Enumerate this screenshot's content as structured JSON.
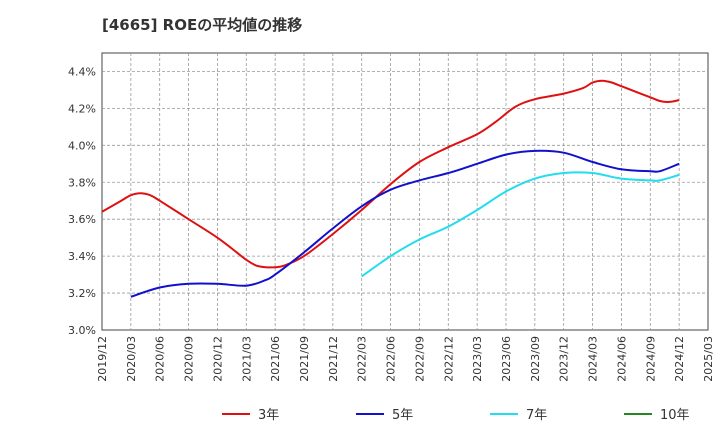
{
  "chart_data": {
    "type": "line",
    "title": "[4665]  ROEの平均値の推移",
    "xlabel": "",
    "ylabel": "",
    "ylim": [
      3.0,
      4.5
    ],
    "yticks": [
      3.0,
      3.2,
      3.4,
      3.6,
      3.8,
      4.0,
      4.2,
      4.4
    ],
    "ytick_labels": [
      "3.0%",
      "3.2%",
      "3.4%",
      "3.6%",
      "3.8%",
      "4.0%",
      "4.2%",
      "4.4%"
    ],
    "x_categories": [
      "2019/12",
      "2020/03",
      "2020/06",
      "2020/09",
      "2020/12",
      "2021/03",
      "2021/06",
      "2021/09",
      "2021/12",
      "2022/03",
      "2022/06",
      "2022/09",
      "2022/12",
      "2023/03",
      "2023/06",
      "2023/09",
      "2023/12",
      "2024/03",
      "2024/06",
      "2024/09",
      "2024/12",
      "2025/03"
    ],
    "grid": true,
    "legend_position": "bottom",
    "series": [
      {
        "name": "3年",
        "color": "#dd1111",
        "points": [
          [
            "2019/12",
            3.64
          ],
          [
            "2020/02",
            3.7
          ],
          [
            "2020/03",
            3.73
          ],
          [
            "2020/04",
            3.74
          ],
          [
            "2020/05",
            3.73
          ],
          [
            "2020/06",
            3.7
          ],
          [
            "2020/09",
            3.6
          ],
          [
            "2020/12",
            3.5
          ],
          [
            "2021/02",
            3.42
          ],
          [
            "2021/03",
            3.38
          ],
          [
            "2021/04",
            3.35
          ],
          [
            "2021/05",
            3.34
          ],
          [
            "2021/06",
            3.34
          ],
          [
            "2021/07",
            3.35
          ],
          [
            "2021/09",
            3.4
          ],
          [
            "2021/12",
            3.52
          ],
          [
            "2022/03",
            3.65
          ],
          [
            "2022/06",
            3.79
          ],
          [
            "2022/09",
            3.91
          ],
          [
            "2022/12",
            3.99
          ],
          [
            "2023/03",
            4.06
          ],
          [
            "2023/05",
            4.13
          ],
          [
            "2023/07",
            4.21
          ],
          [
            "2023/09",
            4.25
          ],
          [
            "2023/12",
            4.28
          ],
          [
            "2024/02",
            4.31
          ],
          [
            "2024/03",
            4.34
          ],
          [
            "2024/04",
            4.35
          ],
          [
            "2024/05",
            4.34
          ],
          [
            "2024/06",
            4.32
          ],
          [
            "2024/09",
            4.26
          ],
          [
            "2024/10",
            4.24
          ],
          [
            "2024/11",
            4.235
          ],
          [
            "2024/12",
            4.245
          ]
        ]
      },
      {
        "name": "5年",
        "color": "#1111cc",
        "points": [
          [
            "2020/03",
            3.18
          ],
          [
            "2020/06",
            3.23
          ],
          [
            "2020/09",
            3.25
          ],
          [
            "2020/12",
            3.25
          ],
          [
            "2021/03",
            3.24
          ],
          [
            "2021/05",
            3.27
          ],
          [
            "2021/06",
            3.3
          ],
          [
            "2021/09",
            3.42
          ],
          [
            "2021/12",
            3.55
          ],
          [
            "2022/03",
            3.67
          ],
          [
            "2022/06",
            3.76
          ],
          [
            "2022/09",
            3.81
          ],
          [
            "2022/12",
            3.85
          ],
          [
            "2023/03",
            3.9
          ],
          [
            "2023/06",
            3.95
          ],
          [
            "2023/09",
            3.97
          ],
          [
            "2023/12",
            3.96
          ],
          [
            "2024/03",
            3.91
          ],
          [
            "2024/06",
            3.87
          ],
          [
            "2024/09",
            3.86
          ],
          [
            "2024/10",
            3.86
          ],
          [
            "2024/12",
            3.9
          ]
        ]
      },
      {
        "name": "7年",
        "color": "#22ddee",
        "points": [
          [
            "2022/03",
            3.29
          ],
          [
            "2022/06",
            3.4
          ],
          [
            "2022/09",
            3.49
          ],
          [
            "2022/12",
            3.56
          ],
          [
            "2023/03",
            3.65
          ],
          [
            "2023/06",
            3.75
          ],
          [
            "2023/09",
            3.82
          ],
          [
            "2023/12",
            3.85
          ],
          [
            "2024/03",
            3.85
          ],
          [
            "2024/06",
            3.82
          ],
          [
            "2024/09",
            3.81
          ],
          [
            "2024/10",
            3.81
          ],
          [
            "2024/12",
            3.84
          ]
        ]
      },
      {
        "name": "10年",
        "color": "#228822",
        "points": []
      }
    ]
  }
}
